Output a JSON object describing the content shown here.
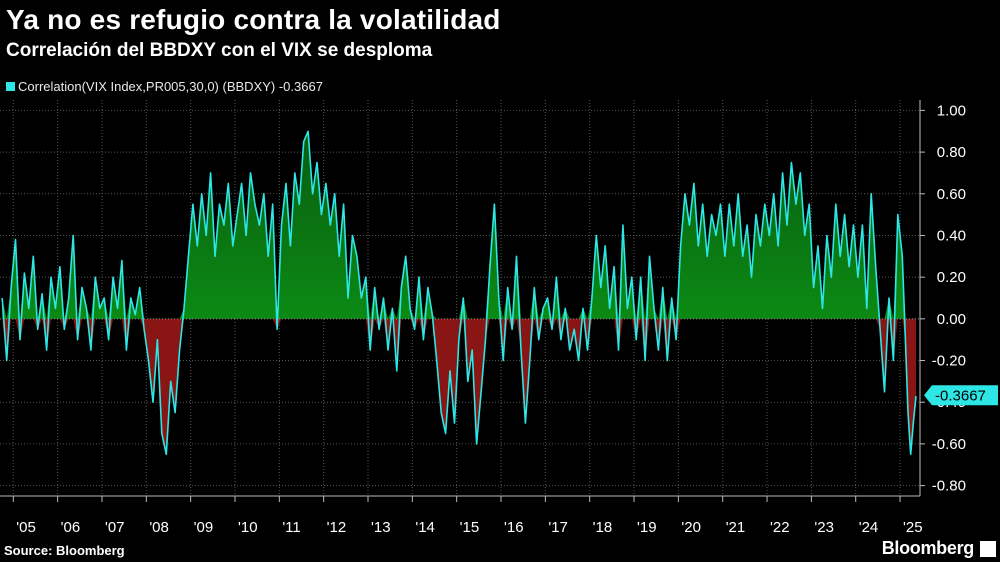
{
  "title": "Ya no es refugio contra la volatilidad",
  "subtitle": "Correlación del BBDXY con el VIX se desploma",
  "legend": {
    "label": "Correlation(VIX Index,PR005,30,0) (BBDXY) -0.3667"
  },
  "source": "Source: Bloomberg",
  "brand": "Bloomberg",
  "colors": {
    "background": "#000000",
    "line": "#2de6e6",
    "positive_fill": "#0b8a14",
    "negative_fill": "#8a1515",
    "last_value_box": "#2de6e6"
  },
  "chart_data": {
    "type": "area",
    "title": "Ya no es refugio contra la volatilidad",
    "subtitle": "Correlación del BBDXY con el VIX se desploma",
    "series_name": "Correlation(VIX Index,PR005,30,0) (BBDXY)",
    "last_value": -0.3667,
    "last_value_label": "-0.3667",
    "ylim": [
      -0.85,
      1.05
    ],
    "y_ticks": [
      1.0,
      0.8,
      0.6,
      0.4,
      0.2,
      0.0,
      -0.2,
      -0.4,
      -0.6,
      -0.8
    ],
    "y_tick_labels": [
      "1.00",
      "0.80",
      "0.60",
      "0.40",
      "0.20",
      "0.00",
      "-0.20",
      "-0.40",
      "-0.60",
      "-0.80"
    ],
    "xlim": [
      2004.7,
      2025.45
    ],
    "x_ticks": [
      2005,
      2006,
      2007,
      2008,
      2009,
      2010,
      2011,
      2012,
      2013,
      2014,
      2015,
      2016,
      2017,
      2018,
      2019,
      2020,
      2021,
      2022,
      2023,
      2024,
      2025
    ],
    "x_tick_labels": [
      "'05",
      "'06",
      "'07",
      "'08",
      "'09",
      "'10",
      "'11",
      "'12",
      "'13",
      "'14",
      "'15",
      "'16",
      "'17",
      "'18",
      "'19",
      "'20",
      "'21",
      "'22",
      "'23",
      "'24",
      "'25"
    ],
    "x_unit": "year",
    "points": [
      [
        2004.75,
        0.1
      ],
      [
        2004.85,
        -0.2
      ],
      [
        2004.95,
        0.15
      ],
      [
        2005.05,
        0.38
      ],
      [
        2005.15,
        -0.1
      ],
      [
        2005.25,
        0.22
      ],
      [
        2005.35,
        0.05
      ],
      [
        2005.45,
        0.3
      ],
      [
        2005.55,
        -0.05
      ],
      [
        2005.65,
        0.12
      ],
      [
        2005.75,
        -0.15
      ],
      [
        2005.85,
        0.2
      ],
      [
        2005.95,
        0.05
      ],
      [
        2006.05,
        0.25
      ],
      [
        2006.15,
        -0.05
      ],
      [
        2006.25,
        0.1
      ],
      [
        2006.35,
        0.4
      ],
      [
        2006.45,
        -0.1
      ],
      [
        2006.55,
        0.15
      ],
      [
        2006.65,
        0.05
      ],
      [
        2006.75,
        -0.15
      ],
      [
        2006.85,
        0.2
      ],
      [
        2006.95,
        0.05
      ],
      [
        2007.05,
        0.1
      ],
      [
        2007.15,
        -0.1
      ],
      [
        2007.25,
        0.2
      ],
      [
        2007.35,
        0.05
      ],
      [
        2007.45,
        0.28
      ],
      [
        2007.55,
        -0.15
      ],
      [
        2007.65,
        0.1
      ],
      [
        2007.75,
        0.02
      ],
      [
        2007.85,
        0.15
      ],
      [
        2007.95,
        -0.05
      ],
      [
        2008.05,
        -0.2
      ],
      [
        2008.15,
        -0.4
      ],
      [
        2008.25,
        -0.1
      ],
      [
        2008.35,
        -0.55
      ],
      [
        2008.45,
        -0.65
      ],
      [
        2008.55,
        -0.3
      ],
      [
        2008.65,
        -0.45
      ],
      [
        2008.75,
        -0.15
      ],
      [
        2008.85,
        0.05
      ],
      [
        2008.95,
        0.3
      ],
      [
        2009.05,
        0.55
      ],
      [
        2009.15,
        0.35
      ],
      [
        2009.25,
        0.6
      ],
      [
        2009.35,
        0.4
      ],
      [
        2009.45,
        0.7
      ],
      [
        2009.55,
        0.3
      ],
      [
        2009.65,
        0.55
      ],
      [
        2009.75,
        0.45
      ],
      [
        2009.85,
        0.65
      ],
      [
        2009.95,
        0.35
      ],
      [
        2010.05,
        0.5
      ],
      [
        2010.15,
        0.65
      ],
      [
        2010.25,
        0.4
      ],
      [
        2010.35,
        0.7
      ],
      [
        2010.45,
        0.55
      ],
      [
        2010.55,
        0.45
      ],
      [
        2010.65,
        0.6
      ],
      [
        2010.75,
        0.3
      ],
      [
        2010.85,
        0.55
      ],
      [
        2010.95,
        -0.05
      ],
      [
        2011.05,
        0.45
      ],
      [
        2011.15,
        0.65
      ],
      [
        2011.25,
        0.35
      ],
      [
        2011.35,
        0.7
      ],
      [
        2011.45,
        0.55
      ],
      [
        2011.55,
        0.85
      ],
      [
        2011.65,
        0.9
      ],
      [
        2011.75,
        0.6
      ],
      [
        2011.85,
        0.75
      ],
      [
        2011.95,
        0.5
      ],
      [
        2012.05,
        0.65
      ],
      [
        2012.15,
        0.45
      ],
      [
        2012.25,
        0.6
      ],
      [
        2012.35,
        0.3
      ],
      [
        2012.45,
        0.55
      ],
      [
        2012.55,
        0.1
      ],
      [
        2012.65,
        0.4
      ],
      [
        2012.75,
        0.3
      ],
      [
        2012.85,
        0.1
      ],
      [
        2012.95,
        0.2
      ],
      [
        2013.05,
        -0.15
      ],
      [
        2013.15,
        0.15
      ],
      [
        2013.25,
        -0.05
      ],
      [
        2013.35,
        0.1
      ],
      [
        2013.45,
        -0.15
      ],
      [
        2013.55,
        0.05
      ],
      [
        2013.65,
        -0.25
      ],
      [
        2013.75,
        0.15
      ],
      [
        2013.85,
        0.3
      ],
      [
        2013.95,
        0.05
      ],
      [
        2014.05,
        -0.05
      ],
      [
        2014.15,
        0.2
      ],
      [
        2014.25,
        -0.1
      ],
      [
        2014.35,
        0.15
      ],
      [
        2014.45,
        0.02
      ],
      [
        2014.55,
        -0.2
      ],
      [
        2014.65,
        -0.45
      ],
      [
        2014.75,
        -0.55
      ],
      [
        2014.85,
        -0.25
      ],
      [
        2014.95,
        -0.5
      ],
      [
        2015.05,
        -0.1
      ],
      [
        2015.15,
        0.1
      ],
      [
        2015.25,
        -0.3
      ],
      [
        2015.35,
        -0.15
      ],
      [
        2015.45,
        -0.6
      ],
      [
        2015.55,
        -0.35
      ],
      [
        2015.65,
        -0.1
      ],
      [
        2015.75,
        0.25
      ],
      [
        2015.85,
        0.55
      ],
      [
        2015.95,
        0.1
      ],
      [
        2016.05,
        -0.2
      ],
      [
        2016.15,
        0.15
      ],
      [
        2016.25,
        -0.05
      ],
      [
        2016.35,
        0.3
      ],
      [
        2016.45,
        -0.15
      ],
      [
        2016.55,
        -0.5
      ],
      [
        2016.65,
        -0.2
      ],
      [
        2016.75,
        0.15
      ],
      [
        2016.85,
        -0.1
      ],
      [
        2016.95,
        0.05
      ],
      [
        2017.05,
        0.1
      ],
      [
        2017.15,
        -0.05
      ],
      [
        2017.25,
        0.2
      ],
      [
        2017.35,
        -0.1
      ],
      [
        2017.45,
        0.05
      ],
      [
        2017.55,
        -0.15
      ],
      [
        2017.65,
        -0.05
      ],
      [
        2017.75,
        -0.2
      ],
      [
        2017.85,
        0.05
      ],
      [
        2017.95,
        -0.15
      ],
      [
        2018.05,
        0.1
      ],
      [
        2018.15,
        0.4
      ],
      [
        2018.25,
        0.15
      ],
      [
        2018.35,
        0.35
      ],
      [
        2018.45,
        0.05
      ],
      [
        2018.55,
        0.25
      ],
      [
        2018.65,
        -0.15
      ],
      [
        2018.75,
        0.45
      ],
      [
        2018.85,
        0.05
      ],
      [
        2018.95,
        0.2
      ],
      [
        2019.05,
        -0.1
      ],
      [
        2019.15,
        0.2
      ],
      [
        2019.25,
        -0.2
      ],
      [
        2019.35,
        0.3
      ],
      [
        2019.45,
        0.05
      ],
      [
        2019.55,
        -0.15
      ],
      [
        2019.65,
        0.15
      ],
      [
        2019.75,
        -0.2
      ],
      [
        2019.85,
        0.1
      ],
      [
        2019.95,
        -0.1
      ],
      [
        2020.05,
        0.35
      ],
      [
        2020.15,
        0.6
      ],
      [
        2020.25,
        0.45
      ],
      [
        2020.35,
        0.65
      ],
      [
        2020.45,
        0.35
      ],
      [
        2020.55,
        0.55
      ],
      [
        2020.65,
        0.3
      ],
      [
        2020.75,
        0.5
      ],
      [
        2020.85,
        0.4
      ],
      [
        2020.95,
        0.55
      ],
      [
        2021.05,
        0.3
      ],
      [
        2021.15,
        0.55
      ],
      [
        2021.25,
        0.35
      ],
      [
        2021.35,
        0.6
      ],
      [
        2021.45,
        0.3
      ],
      [
        2021.55,
        0.45
      ],
      [
        2021.65,
        0.2
      ],
      [
        2021.75,
        0.5
      ],
      [
        2021.85,
        0.35
      ],
      [
        2021.95,
        0.55
      ],
      [
        2022.05,
        0.4
      ],
      [
        2022.15,
        0.6
      ],
      [
        2022.25,
        0.35
      ],
      [
        2022.35,
        0.7
      ],
      [
        2022.45,
        0.45
      ],
      [
        2022.55,
        0.75
      ],
      [
        2022.65,
        0.55
      ],
      [
        2022.75,
        0.7
      ],
      [
        2022.85,
        0.4
      ],
      [
        2022.95,
        0.55
      ],
      [
        2023.05,
        0.15
      ],
      [
        2023.15,
        0.35
      ],
      [
        2023.25,
        0.05
      ],
      [
        2023.35,
        0.4
      ],
      [
        2023.45,
        0.2
      ],
      [
        2023.55,
        0.55
      ],
      [
        2023.65,
        0.3
      ],
      [
        2023.75,
        0.5
      ],
      [
        2023.85,
        0.25
      ],
      [
        2023.95,
        0.45
      ],
      [
        2024.05,
        0.2
      ],
      [
        2024.15,
        0.45
      ],
      [
        2024.25,
        0.05
      ],
      [
        2024.35,
        0.6
      ],
      [
        2024.45,
        0.25
      ],
      [
        2024.55,
        -0.05
      ],
      [
        2024.65,
        -0.35
      ],
      [
        2024.75,
        0.1
      ],
      [
        2024.85,
        -0.2
      ],
      [
        2024.95,
        0.5
      ],
      [
        2025.05,
        0.3
      ],
      [
        2025.12,
        -0.1
      ],
      [
        2025.18,
        -0.45
      ],
      [
        2025.24,
        -0.65
      ],
      [
        2025.3,
        -0.5
      ],
      [
        2025.36,
        -0.37
      ]
    ]
  }
}
